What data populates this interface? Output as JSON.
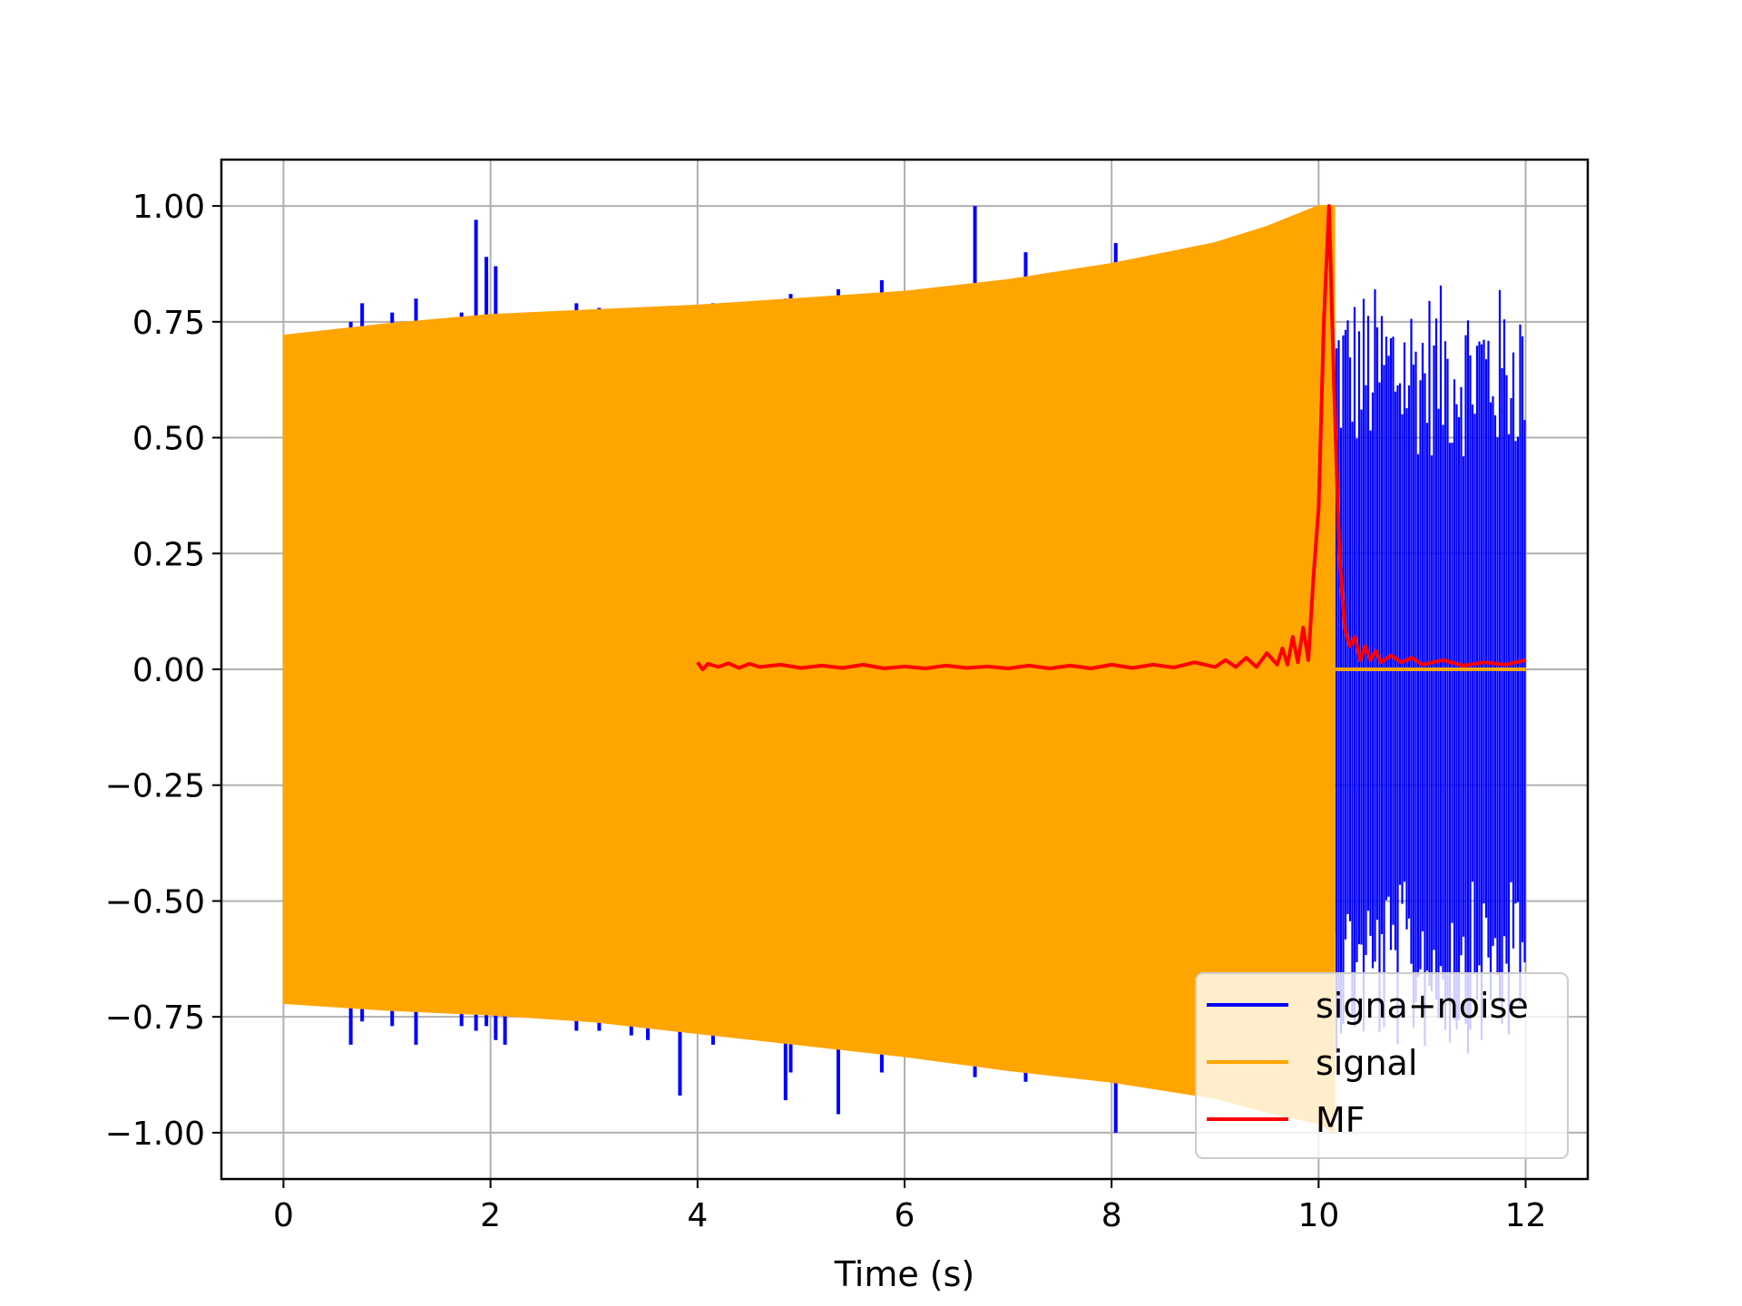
{
  "chart_data": {
    "type": "line",
    "title": "",
    "xlabel": "Time (s)",
    "ylabel": "",
    "xlim": [
      -0.6,
      12.6
    ],
    "ylim": [
      -1.1,
      1.1
    ],
    "grid": true,
    "legend_position": "lower-right",
    "x_ticks": [
      0,
      2,
      4,
      6,
      8,
      10,
      12
    ],
    "x_tick_labels": [
      "0",
      "2",
      "4",
      "6",
      "8",
      "10",
      "12"
    ],
    "y_ticks": [
      1.0,
      0.75,
      0.5,
      0.25,
      0.0,
      -0.25,
      -0.5,
      -0.75,
      -1.0
    ],
    "y_tick_labels": [
      "1.00",
      "0.75",
      "0.50",
      "0.25",
      "0.00",
      "−0.25",
      "−0.50",
      "−0.75",
      "−1.00"
    ],
    "series": [
      {
        "name": "signa+noise",
        "color": "#0000ff",
        "spikes": [
          [
            0.26,
            0.72,
            -0.72
          ],
          [
            0.65,
            0.75,
            -0.81
          ],
          [
            0.76,
            0.79,
            -0.76
          ],
          [
            1.05,
            0.77,
            -0.77
          ],
          [
            1.28,
            0.8,
            -0.81
          ],
          [
            1.72,
            0.77,
            -0.77
          ],
          [
            1.86,
            0.97,
            -0.78
          ],
          [
            1.96,
            0.89,
            -0.77
          ],
          [
            2.05,
            0.87,
            -0.8
          ],
          [
            2.14,
            0.76,
            -0.81
          ],
          [
            2.83,
            0.79,
            -0.78
          ],
          [
            3.05,
            0.78,
            -0.78
          ],
          [
            3.36,
            0.78,
            -0.79
          ],
          [
            3.52,
            0.77,
            -0.8
          ],
          [
            3.83,
            0.78,
            -0.92
          ],
          [
            4.15,
            0.79,
            -0.81
          ],
          [
            4.85,
            0.8,
            -0.93
          ],
          [
            4.9,
            0.81,
            -0.87
          ],
          [
            5.36,
            0.82,
            -0.96
          ],
          [
            5.78,
            0.84,
            -0.87
          ],
          [
            6.68,
            1.0,
            -0.88
          ],
          [
            7.17,
            0.9,
            -0.89
          ],
          [
            8.04,
            0.92,
            -1.0
          ],
          [
            9.5,
            0.93,
            -0.95
          ]
        ],
        "noise_region": [
          10.15,
          12.0
        ],
        "noise_amplitude": 0.83
      },
      {
        "name": "signal",
        "color": "#ffa500",
        "envelope_x": [
          0,
          1,
          2,
          3,
          4,
          5,
          6,
          7,
          8,
          9,
          9.5,
          10,
          10.15
        ],
        "envelope_upper": [
          0.72,
          0.745,
          0.765,
          0.775,
          0.785,
          0.8,
          0.815,
          0.84,
          0.875,
          0.92,
          0.955,
          1.0,
          1.0
        ],
        "envelope_lower": [
          -0.72,
          -0.735,
          -0.745,
          -0.76,
          -0.785,
          -0.81,
          -0.835,
          -0.865,
          -0.89,
          -0.925,
          -0.955,
          -0.98,
          -1.0
        ],
        "flat_after": [
          10.15,
          12.0
        ]
      },
      {
        "name": "MF",
        "color": "#ff0000",
        "x": [
          4.0,
          4.05,
          4.1,
          4.2,
          4.3,
          4.4,
          4.5,
          4.6,
          4.8,
          5.0,
          5.2,
          5.4,
          5.6,
          5.8,
          6.0,
          6.2,
          6.4,
          6.6,
          6.8,
          7.0,
          7.2,
          7.4,
          7.6,
          7.8,
          8.0,
          8.2,
          8.4,
          8.6,
          8.8,
          9.0,
          9.1,
          9.2,
          9.3,
          9.4,
          9.5,
          9.6,
          9.65,
          9.7,
          9.75,
          9.8,
          9.85,
          9.9,
          9.95,
          10.0,
          10.05,
          10.1,
          10.15,
          10.2,
          10.25,
          10.3,
          10.35,
          10.4,
          10.45,
          10.5,
          10.55,
          10.6,
          10.7,
          10.8,
          10.9,
          11.0,
          11.2,
          11.4,
          11.6,
          11.8,
          12.0
        ],
        "y": [
          0.015,
          0.0,
          0.012,
          0.005,
          0.013,
          0.003,
          0.012,
          0.005,
          0.01,
          0.003,
          0.008,
          0.003,
          0.01,
          0.002,
          0.006,
          0.002,
          0.008,
          0.003,
          0.006,
          0.002,
          0.008,
          0.002,
          0.008,
          0.002,
          0.01,
          0.003,
          0.01,
          0.004,
          0.015,
          0.005,
          0.02,
          0.005,
          0.025,
          0.005,
          0.035,
          0.01,
          0.045,
          0.01,
          0.07,
          0.015,
          0.09,
          0.02,
          0.2,
          0.35,
          0.75,
          1.0,
          0.6,
          0.25,
          0.09,
          0.05,
          0.07,
          0.02,
          0.05,
          0.02,
          0.04,
          0.015,
          0.03,
          0.015,
          0.025,
          0.01,
          0.02,
          0.008,
          0.015,
          0.01,
          0.02
        ]
      }
    ]
  }
}
